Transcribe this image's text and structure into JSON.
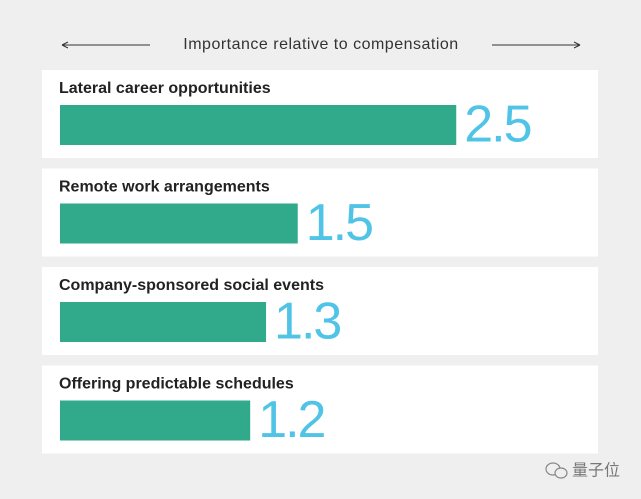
{
  "chart_data": {
    "type": "bar",
    "orientation": "horizontal",
    "title": "Importance relative to compensation",
    "categories": [
      "Lateral career opportunities",
      "Remote work arrangements",
      "Company-sponsored social events",
      "Offering predictable schedules"
    ],
    "values": [
      2.5,
      1.5,
      1.3,
      1.2
    ],
    "color": "#31aa8b",
    "value_label_color": "#4fc4e6"
  },
  "watermark": "量子位"
}
